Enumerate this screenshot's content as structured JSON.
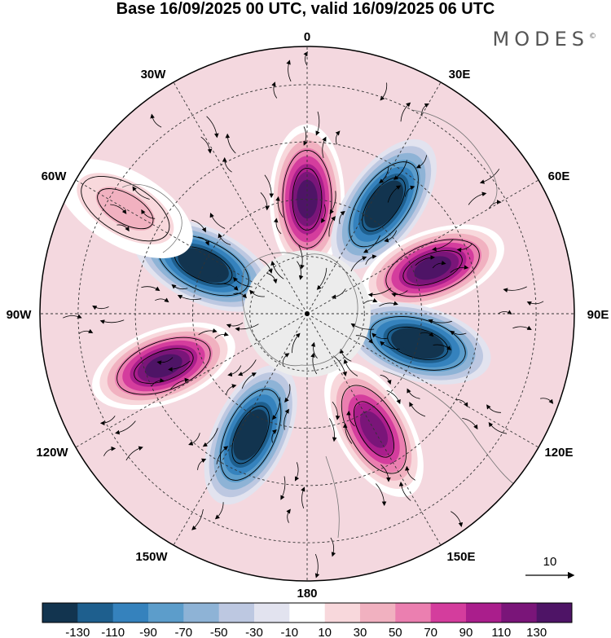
{
  "title": "Base 16/09/2025 00 UTC, valid 16/09/2025 06 UTC",
  "brand": {
    "name": "MODES",
    "mark": "©"
  },
  "meridian_labels": {
    "m0": "0",
    "m30e": "30E",
    "m60e": "60E",
    "m90e": "90E",
    "m120e": "120E",
    "m150e": "150E",
    "m180": "180",
    "m150w": "150W",
    "m120w": "120W",
    "m90w": "90W",
    "m60w": "60W",
    "m30w": "30W"
  },
  "vector_reference": {
    "value": "10"
  },
  "colorbar": {
    "colors": [
      "#12344f",
      "#1e5f8e",
      "#3582bd",
      "#5c9dcb",
      "#8eb3d6",
      "#bdc8e1",
      "#e2e3ef",
      "#ffffff",
      "#f8d8dc",
      "#f1b1c0",
      "#eb7fb0",
      "#d43d9d",
      "#aa1e8c",
      "#7a1579",
      "#4e1466"
    ],
    "ticks": [
      "-130",
      "-110",
      "-90",
      "-70",
      "-50",
      "-30",
      "-10",
      "10",
      "30",
      "50",
      "70",
      "90",
      "110",
      "130"
    ]
  },
  "map_data": {
    "projection": "south polar stereographic",
    "field": "anomaly (shaded) with streamlines",
    "anomaly_centers": [
      {
        "lon": 0,
        "lat": -60,
        "value": 130
      },
      {
        "lon": 35,
        "lat": -55,
        "value": -130
      },
      {
        "lon": 70,
        "lat": -55,
        "value": 130
      },
      {
        "lon": 105,
        "lat": -60,
        "value": -130
      },
      {
        "lon": 150,
        "lat": -55,
        "value": 110
      },
      {
        "lon": -155,
        "lat": -55,
        "value": -130
      },
      {
        "lon": -110,
        "lat": -50,
        "value": 130
      },
      {
        "lon": -65,
        "lat": -60,
        "value": -130
      },
      {
        "lon": -60,
        "lat": -35,
        "value": 30
      }
    ]
  }
}
